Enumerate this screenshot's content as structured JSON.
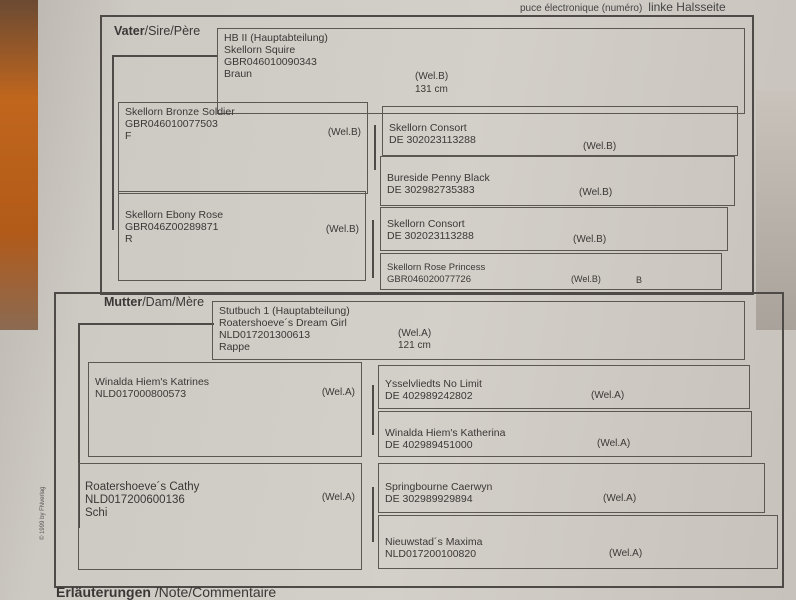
{
  "header_note": {
    "text": "puce électronique (numéro)",
    "side": "linke Halsseite"
  },
  "sire": {
    "section_bold": "Vater",
    "section_rest": "/Sire/Père",
    "book": "HB II (Hauptabteilung)",
    "name": "Skellorn Squire",
    "id": "GBR046010090343",
    "color": "Braun",
    "breed": "(Wel.B)",
    "height": "131 cm",
    "sire": {
      "name": "Skellorn Bronze Soldier",
      "id": "GBR046010077503",
      "color": "F",
      "breed": "(Wel.B)",
      "sire": {
        "name": "Skellorn Consort",
        "id": "DE 302023113288",
        "breed": "(Wel.B)"
      },
      "dam": {
        "name": "Bureside Penny Black",
        "id": "DE 302982735383",
        "breed": "(Wel.B)"
      }
    },
    "dam": {
      "name": "Skellorn Ebony Rose",
      "id": "GBR046Z00289871",
      "color": "R",
      "breed": "(Wel.B)",
      "sire": {
        "name": "Skellorn Consort",
        "id": "DE 302023113288",
        "breed": "(Wel.B)"
      },
      "dam": {
        "name": "Skellorn Rose Princess",
        "id": "GBR046020077726",
        "breed": "(Wel.B)",
        "extra": "B"
      }
    }
  },
  "dam": {
    "section_bold": "Mutter",
    "section_rest": "/Dam/Mère",
    "book": "Stutbuch 1 (Hauptabteilung)",
    "name": "Roatershoeve´s Dream Girl",
    "id": "NLD017201300613",
    "color": "Rappe",
    "breed": "(Wel.A)",
    "height": "121 cm",
    "sire": {
      "name": "Winalda Hiem's Katrines",
      "id": "NLD017000800573",
      "breed": "(Wel.A)",
      "sire": {
        "name": "Ysselvliedts No Limit",
        "id": "DE 402989242802",
        "breed": "(Wel.A)"
      },
      "dam": {
        "name": "Winalda Hiem's Katherina",
        "id": "DE 402989451000",
        "breed": "(Wel.A)"
      }
    },
    "dam": {
      "name": "Roatershoeve´s Cathy",
      "id": "NLD017200600136",
      "color": "Schi",
      "breed": "(Wel.A)",
      "sire": {
        "name": "Springbourne Caerwyn",
        "id": "DE 302989929894",
        "breed": "(Wel.A)"
      },
      "dam": {
        "name": "Nieuwstad´s Maxima",
        "id": "NLD017200100820",
        "breed": "(Wel.A)"
      }
    }
  },
  "copyright": "© 1999 by FNverlag",
  "footer": {
    "bold": "Erläuterungen",
    "rest": " /Note/Commentaire"
  }
}
